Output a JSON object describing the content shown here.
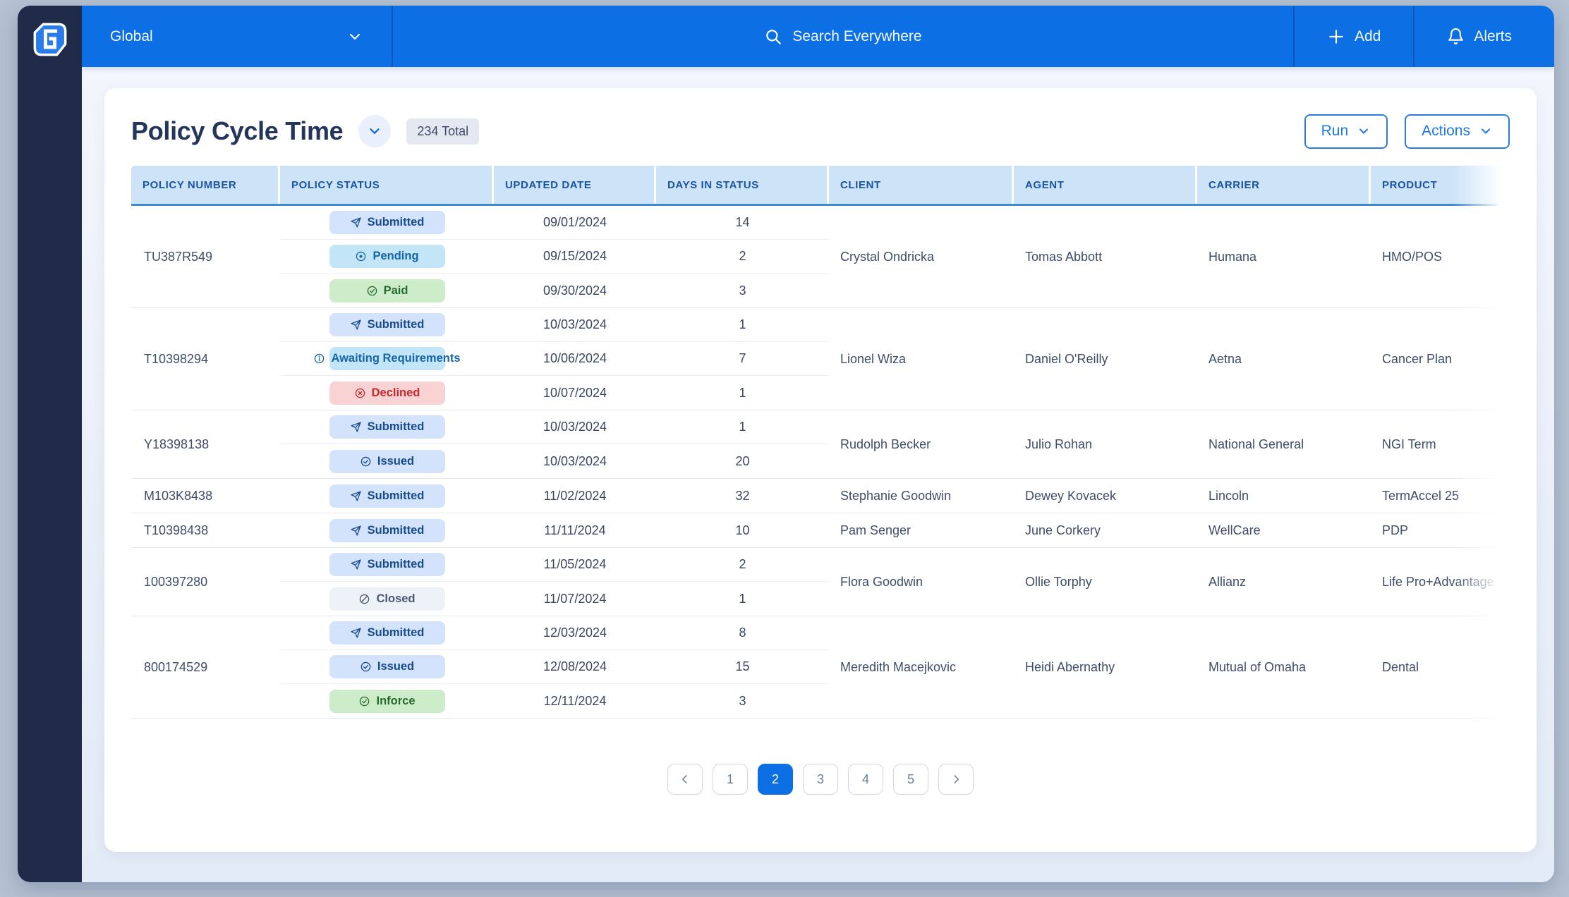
{
  "header": {
    "context_label": "Global",
    "search_placeholder": "Search Everywhere",
    "add_label": "Add",
    "alerts_label": "Alerts"
  },
  "page": {
    "title": "Policy Cycle Time",
    "total_badge": "234 Total",
    "run_label": "Run",
    "actions_label": "Actions"
  },
  "table": {
    "columns": [
      "POLICY NUMBER",
      "POLICY STATUS",
      "UPDATED DATE",
      "DAYS IN STATUS",
      "CLIENT",
      "AGENT",
      "CARRIER",
      "PRODUCT"
    ],
    "groups": [
      {
        "policy_number": "TU387R549",
        "client": "Crystal Ondricka",
        "agent": "Tomas Abbott",
        "carrier": "Humana",
        "product": "HMO/POS",
        "statuses": [
          {
            "label": "Submitted",
            "icon": "send-icon",
            "variant": "blue",
            "updated": "09/01/2024",
            "days": "14"
          },
          {
            "label": "Pending",
            "icon": "pending-icon",
            "variant": "cyan",
            "updated": "09/15/2024",
            "days": "2"
          },
          {
            "label": "Paid",
            "icon": "check-circle-icon",
            "variant": "green",
            "updated": "09/30/2024",
            "days": "3"
          }
        ]
      },
      {
        "policy_number": "T10398294",
        "client": "Lionel Wiza",
        "agent": "Daniel O'Reilly",
        "carrier": "Aetna",
        "product": "Cancer Plan",
        "statuses": [
          {
            "label": "Submitted",
            "icon": "send-icon",
            "variant": "blue",
            "updated": "10/03/2024",
            "days": "1"
          },
          {
            "label": "Awaiting Requirements",
            "icon": "info-circle-icon",
            "variant": "cyan",
            "updated": "10/06/2024",
            "days": "7"
          },
          {
            "label": "Declined",
            "icon": "x-circle-icon",
            "variant": "red",
            "updated": "10/07/2024",
            "days": "1"
          }
        ]
      },
      {
        "policy_number": "Y18398138",
        "client": "Rudolph Becker",
        "agent": "Julio Rohan",
        "carrier": "National General",
        "product": "NGI Term",
        "statuses": [
          {
            "label": "Submitted",
            "icon": "send-icon",
            "variant": "blue",
            "updated": "10/03/2024",
            "days": "1"
          },
          {
            "label": "Issued",
            "icon": "check-circle-icon",
            "variant": "blue",
            "updated": "10/03/2024",
            "days": "20"
          }
        ]
      },
      {
        "policy_number": "M103K8438",
        "client": "Stephanie Goodwin",
        "agent": "Dewey Kovacek",
        "carrier": "Lincoln",
        "product": "TermAccel 25",
        "statuses": [
          {
            "label": "Submitted",
            "icon": "send-icon",
            "variant": "blue",
            "updated": "11/02/2024",
            "days": "32"
          }
        ]
      },
      {
        "policy_number": "T10398438",
        "client": "Pam Senger",
        "agent": "June Corkery",
        "carrier": "WellCare",
        "product": "PDP",
        "statuses": [
          {
            "label": "Submitted",
            "icon": "send-icon",
            "variant": "blue",
            "updated": "11/11/2024",
            "days": "10"
          }
        ]
      },
      {
        "policy_number": "100397280",
        "client": "Flora Goodwin",
        "agent": "Ollie Torphy",
        "carrier": "Allianz",
        "product": "Life Pro+Advantage",
        "statuses": [
          {
            "label": "Submitted",
            "icon": "send-icon",
            "variant": "blue",
            "updated": "11/05/2024",
            "days": "2"
          },
          {
            "label": "Closed",
            "icon": "slash-circle-icon",
            "variant": "gray",
            "updated": "11/07/2024",
            "days": "1"
          }
        ]
      },
      {
        "policy_number": "800174529",
        "client": "Meredith Macejkovic",
        "agent": "Heidi Abernathy",
        "carrier": "Mutual of Omaha",
        "product": "Dental",
        "statuses": [
          {
            "label": "Submitted",
            "icon": "send-icon",
            "variant": "blue",
            "updated": "12/03/2024",
            "days": "8"
          },
          {
            "label": "Issued",
            "icon": "check-circle-icon",
            "variant": "blue",
            "updated": "12/08/2024",
            "days": "15"
          },
          {
            "label": "Inforce",
            "icon": "check-circle-icon",
            "variant": "green",
            "updated": "12/11/2024",
            "days": "3"
          }
        ]
      }
    ]
  },
  "pagination": {
    "pages": [
      "1",
      "2",
      "3",
      "4",
      "5"
    ],
    "active": "2"
  },
  "colors": {
    "topbar_blue": "#0d6fe4",
    "sidebar_navy": "#1f2b49",
    "header_cell_bg": "#cde3f8",
    "header_cell_text": "#1a55a3",
    "badge_blue_bg": "#d3e3fb",
    "badge_blue_text": "#174b90",
    "badge_cyan_bg": "#c2e5f8",
    "badge_cyan_text": "#1565a8",
    "badge_green_bg": "#cdedca",
    "badge_green_text": "#28692f",
    "badge_red_bg": "#f9d3d3",
    "badge_red_text": "#c5282d",
    "badge_gray_bg": "#edf1f8",
    "badge_gray_text": "#4a5670",
    "pagination_active": "#0d6fe4"
  }
}
